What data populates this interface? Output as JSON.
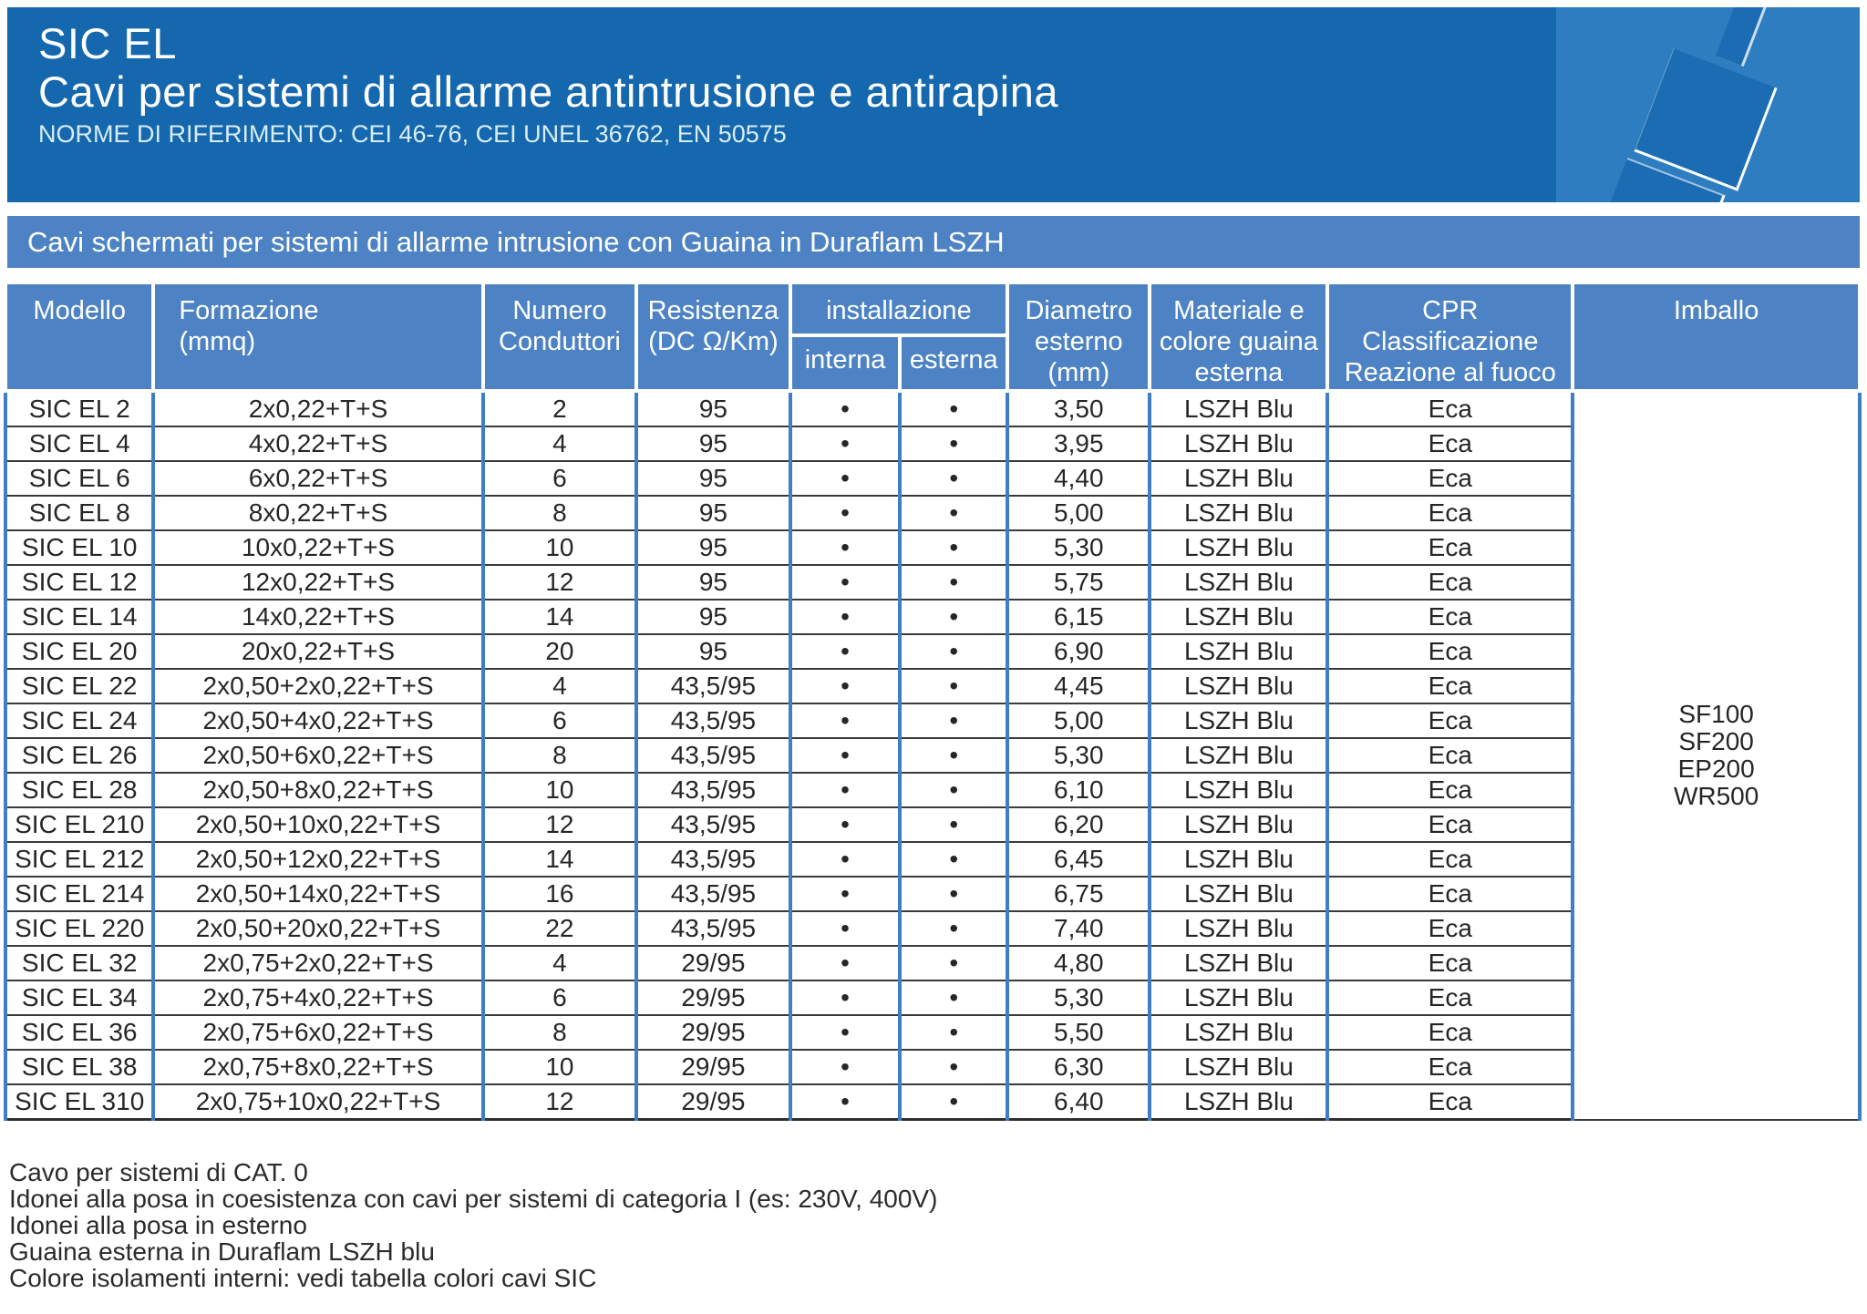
{
  "header": {
    "title": "SIC EL",
    "subtitle": "Cavi per sistemi di allarme antintrusione e antirapina",
    "norms": "NORME DI RIFERIMENTO: CEI 46-76, CEI UNEL 36762, EN 50575"
  },
  "section_band": {
    "text": "Cavi schermati per sistemi di allarme intrusione con Guaina in Duraflam LSZH"
  },
  "table": {
    "columns": {
      "modello": "Modello",
      "formazione": "Formazione\n(mmq)",
      "numero": "Numero\nConduttori",
      "resistenza": "Resistenza\n(DC Ω/Km)",
      "installazione": "installazione",
      "interna": "interna",
      "esterna": "esterna",
      "diametro": "Diametro\nesterno\n(mm)",
      "materiale": "Materiale e\ncolore guaina\nesterna",
      "cpr": "CPR\nClassificazione\nReazione al fuoco",
      "imballo": "Imballo"
    },
    "dot": "•",
    "imballo_options": "SF100\nSF200\nEP200\nWR500",
    "rows": [
      {
        "modello": "SIC EL 2",
        "formazione": "2x0,22+T+S",
        "conduttori": "2",
        "resistenza": "95",
        "interna": true,
        "esterna": true,
        "diametro": "3,50",
        "guaina": "LSZH Blu",
        "cpr": "Eca"
      },
      {
        "modello": "SIC EL 4",
        "formazione": "4x0,22+T+S",
        "conduttori": "4",
        "resistenza": "95",
        "interna": true,
        "esterna": true,
        "diametro": "3,95",
        "guaina": "LSZH Blu",
        "cpr": "Eca"
      },
      {
        "modello": "SIC EL 6",
        "formazione": "6x0,22+T+S",
        "conduttori": "6",
        "resistenza": "95",
        "interna": true,
        "esterna": true,
        "diametro": "4,40",
        "guaina": "LSZH Blu",
        "cpr": "Eca"
      },
      {
        "modello": "SIC EL 8",
        "formazione": "8x0,22+T+S",
        "conduttori": "8",
        "resistenza": "95",
        "interna": true,
        "esterna": true,
        "diametro": "5,00",
        "guaina": "LSZH Blu",
        "cpr": "Eca"
      },
      {
        "modello": "SIC EL 10",
        "formazione": "10x0,22+T+S",
        "conduttori": "10",
        "resistenza": "95",
        "interna": true,
        "esterna": true,
        "diametro": "5,30",
        "guaina": "LSZH Blu",
        "cpr": "Eca"
      },
      {
        "modello": "SIC EL 12",
        "formazione": "12x0,22+T+S",
        "conduttori": "12",
        "resistenza": "95",
        "interna": true,
        "esterna": true,
        "diametro": "5,75",
        "guaina": "LSZH Blu",
        "cpr": "Eca"
      },
      {
        "modello": "SIC EL 14",
        "formazione": "14x0,22+T+S",
        "conduttori": "14",
        "resistenza": "95",
        "interna": true,
        "esterna": true,
        "diametro": "6,15",
        "guaina": "LSZH Blu",
        "cpr": "Eca"
      },
      {
        "modello": "SIC EL 20",
        "formazione": "20x0,22+T+S",
        "conduttori": "20",
        "resistenza": "95",
        "interna": true,
        "esterna": true,
        "diametro": "6,90",
        "guaina": "LSZH Blu",
        "cpr": "Eca"
      },
      {
        "modello": "SIC EL 22",
        "formazione": "2x0,50+2x0,22+T+S",
        "conduttori": "4",
        "resistenza": "43,5/95",
        "interna": true,
        "esterna": true,
        "diametro": "4,45",
        "guaina": "LSZH Blu",
        "cpr": "Eca"
      },
      {
        "modello": "SIC EL 24",
        "formazione": "2x0,50+4x0,22+T+S",
        "conduttori": "6",
        "resistenza": "43,5/95",
        "interna": true,
        "esterna": true,
        "diametro": "5,00",
        "guaina": "LSZH Blu",
        "cpr": "Eca"
      },
      {
        "modello": "SIC EL 26",
        "formazione": "2x0,50+6x0,22+T+S",
        "conduttori": "8",
        "resistenza": "43,5/95",
        "interna": true,
        "esterna": true,
        "diametro": "5,30",
        "guaina": "LSZH Blu",
        "cpr": "Eca"
      },
      {
        "modello": "SIC EL 28",
        "formazione": "2x0,50+8x0,22+T+S",
        "conduttori": "10",
        "resistenza": "43,5/95",
        "interna": true,
        "esterna": true,
        "diametro": "6,10",
        "guaina": "LSZH Blu",
        "cpr": "Eca"
      },
      {
        "modello": "SIC EL 210",
        "formazione": "2x0,50+10x0,22+T+S",
        "conduttori": "12",
        "resistenza": "43,5/95",
        "interna": true,
        "esterna": true,
        "diametro": "6,20",
        "guaina": "LSZH Blu",
        "cpr": "Eca"
      },
      {
        "modello": "SIC EL 212",
        "formazione": "2x0,50+12x0,22+T+S",
        "conduttori": "14",
        "resistenza": "43,5/95",
        "interna": true,
        "esterna": true,
        "diametro": "6,45",
        "guaina": "LSZH Blu",
        "cpr": "Eca"
      },
      {
        "modello": "SIC EL 214",
        "formazione": "2x0,50+14x0,22+T+S",
        "conduttori": "16",
        "resistenza": "43,5/95",
        "interna": true,
        "esterna": true,
        "diametro": "6,75",
        "guaina": "LSZH Blu",
        "cpr": "Eca"
      },
      {
        "modello": "SIC EL 220",
        "formazione": "2x0,50+20x0,22+T+S",
        "conduttori": "22",
        "resistenza": "43,5/95",
        "interna": true,
        "esterna": true,
        "diametro": "7,40",
        "guaina": "LSZH Blu",
        "cpr": "Eca"
      },
      {
        "modello": "SIC EL 32",
        "formazione": "2x0,75+2x0,22+T+S",
        "conduttori": "4",
        "resistenza": "29/95",
        "interna": true,
        "esterna": true,
        "diametro": "4,80",
        "guaina": "LSZH Blu",
        "cpr": "Eca"
      },
      {
        "modello": "SIC EL 34",
        "formazione": "2x0,75+4x0,22+T+S",
        "conduttori": "6",
        "resistenza": "29/95",
        "interna": true,
        "esterna": true,
        "diametro": "5,30",
        "guaina": "LSZH Blu",
        "cpr": "Eca"
      },
      {
        "modello": "SIC EL 36",
        "formazione": "2x0,75+6x0,22+T+S",
        "conduttori": "8",
        "resistenza": "29/95",
        "interna": true,
        "esterna": true,
        "diametro": "5,50",
        "guaina": "LSZH Blu",
        "cpr": "Eca"
      },
      {
        "modello": "SIC EL 38",
        "formazione": "2x0,75+8x0,22+T+S",
        "conduttori": "10",
        "resistenza": "29/95",
        "interna": true,
        "esterna": true,
        "diametro": "6,30",
        "guaina": "LSZH Blu",
        "cpr": "Eca"
      },
      {
        "modello": "SIC EL 310",
        "formazione": "2x0,75+10x0,22+T+S",
        "conduttori": "12",
        "resistenza": "29/95",
        "interna": true,
        "esterna": true,
        "diametro": "6,40",
        "guaina": "LSZH Blu",
        "cpr": "Eca"
      }
    ]
  },
  "footer": {
    "notes": [
      "Cavo per sistemi di CAT. 0",
      "Idonei alla posa in coesistenza con cavi per sistemi di categoria I (es: 230V, 400V)",
      "Idonei alla posa in esterno",
      "Guaina esterna in Duraflam LSZH blu",
      "Colore isolamenti interni: vedi tabella colori cavi SIC"
    ]
  },
  "colors": {
    "header_blue": "#1567ae",
    "band_blue": "#4d83c4",
    "art_blue": "#2e7dc1",
    "grid_blue": "#3f7ec5",
    "row_line": "#3a3a3a"
  }
}
